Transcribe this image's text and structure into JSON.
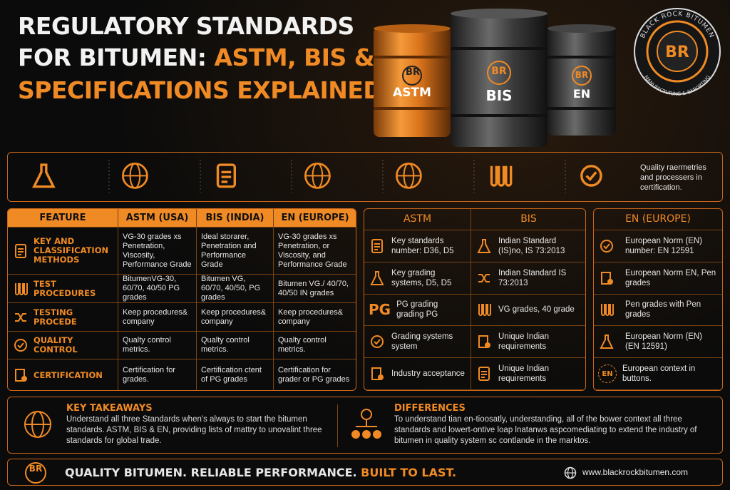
{
  "header": {
    "line1": "REGULATORY STANDARDS",
    "line2": "FOR BITUMEN:",
    "line2_highlight": "ASTM, BIS & EN",
    "line3": "SPECIFICATIONS EXPLAINED."
  },
  "barrels": [
    {
      "logo": "BR",
      "label": "ASTM"
    },
    {
      "logo": "BR",
      "label": "BIS"
    },
    {
      "logo": "BR",
      "label": "EN"
    }
  ],
  "brand_logo": {
    "top_text": "BLACK ROCK BITUMEN",
    "bottom_text": "MANUFACTURING & EXPORTING",
    "initials": "BR"
  },
  "icon_strip": {
    "note": "Quality raermetries and processers in certification."
  },
  "comparison_table": {
    "columns": [
      "FEATURE",
      "ASTM (USA)",
      "BIS (INDIA)",
      "EN (EUROPE)"
    ],
    "rows": [
      [
        "KEY AND CLASSIFICATION METHODS",
        "VG-30 grades xs Penetration, Viscosity, Performance Grade",
        "Ideal storarer, Penetration and Performance Grade",
        "VG-30 grades xs Penetration, or Viscosity, and Performance Grade"
      ],
      [
        "TEST PROCEDURES",
        "BitumenVG-30, 60/70, 40/50 PG grades",
        "Bitumen VG, 60/70, 40/50, PG grades",
        "Bitumen VG./ 40/70, 40/50 IN grades"
      ],
      [
        "TESTING PROCEDE",
        "Keep procedures& company",
        "Keep procedures& company",
        "Keep procedures& company"
      ],
      [
        "QUALITY CONTROL",
        "Qualty control metrics.",
        "Qualty control metrics.",
        "Qualty control metrics."
      ],
      [
        "CERTIFICATION",
        "Certification for grades.",
        "Certification ctent of PG grades",
        "Certification for grader or PG grades"
      ]
    ]
  },
  "standards_panel": {
    "columns": [
      "ASTM",
      "BIS"
    ],
    "badge": "PG",
    "rows": [
      [
        "Key standards number: D36, D5",
        "Indian Standard (IS)no, IS 73:2013"
      ],
      [
        "Key grading systems, D5, D5",
        "Indian Standard IS 73:2013"
      ],
      [
        "PG grading grading PG",
        "VG grades, 40 grade"
      ],
      [
        "Grading systems system",
        "Unique Indian requirements"
      ],
      [
        "Industry acceptance",
        "Unique Indian requirements"
      ]
    ]
  },
  "en_panel": {
    "title": "EN (EUROPE)",
    "badge": "EN",
    "items": [
      "European Norm (EN) number: EN 12591",
      "European Norm EN, Pen grades",
      "Pen grades with Pen grades",
      "European Norm (EN) (EN 12591)",
      "European context in buttons."
    ]
  },
  "takeaways": {
    "title": "KEY TAKEAWAYS",
    "text": "Understand all three Standards when's always to start the bitumen standards. ASTM, BIS & EN, providing lists of mattry to unovalint three standards for global trade."
  },
  "differences": {
    "title": "DIFFERENCES",
    "text": "To understand tian en-tioosatly, understanding, all of the bower context all three standards and lowert-ontive loap lnatanws aspcomediating to extend the industry of bitumen in quality system sc contlande in the marktos."
  },
  "footer": {
    "logo": "BR",
    "tagline": "QUALITY BITUMEN. RELIABLE PERFORMANCE.",
    "highlight": "BUILT TO LAST.",
    "url": "www.blackrockbitumen.com"
  }
}
